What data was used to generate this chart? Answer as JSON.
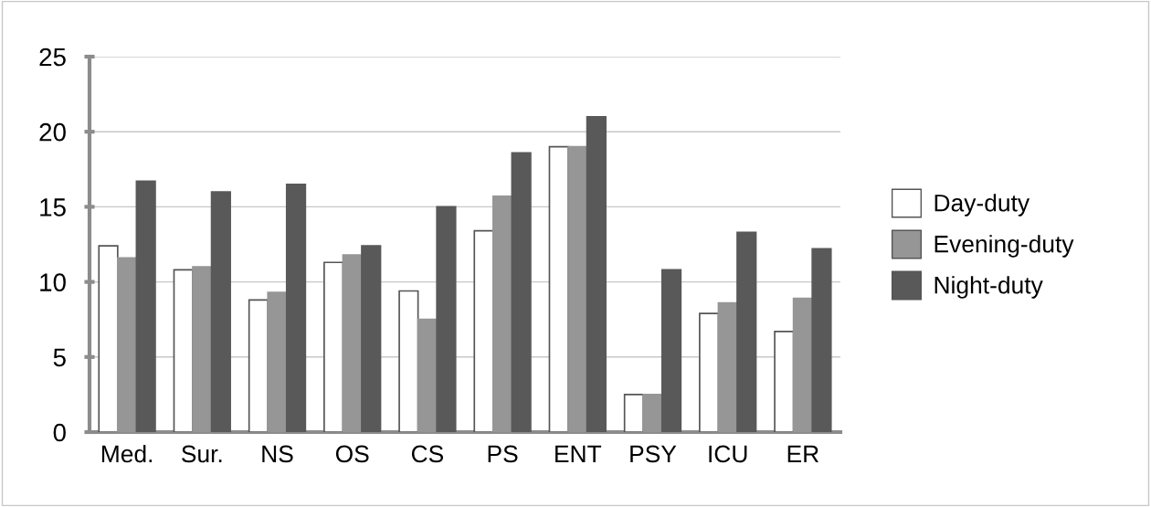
{
  "chart_data": {
    "type": "bar",
    "categories": [
      "Med.",
      "Sur.",
      "NS",
      "OS",
      "CS",
      "PS",
      "ENT",
      "PSY",
      "ICU",
      "ER"
    ],
    "series": [
      {
        "name": "Day-duty",
        "color": "#ffffff",
        "values": [
          12.4,
          10.8,
          8.8,
          11.3,
          9.4,
          13.4,
          19.0,
          2.5,
          7.9,
          6.7
        ]
      },
      {
        "name": "Evening-duty",
        "color": "#969696",
        "values": [
          11.6,
          11.0,
          9.3,
          11.8,
          7.5,
          15.7,
          19.0,
          2.5,
          8.6,
          8.9
        ]
      },
      {
        "name": "Night-duty",
        "color": "#595959",
        "values": [
          16.7,
          16.0,
          16.5,
          12.4,
          15.0,
          18.6,
          21.0,
          10.8,
          13.3,
          12.2
        ]
      }
    ],
    "ylim": [
      0,
      25
    ],
    "yticks": [
      0,
      5,
      10,
      15,
      20,
      25
    ],
    "grid": "y",
    "legend": "right"
  }
}
